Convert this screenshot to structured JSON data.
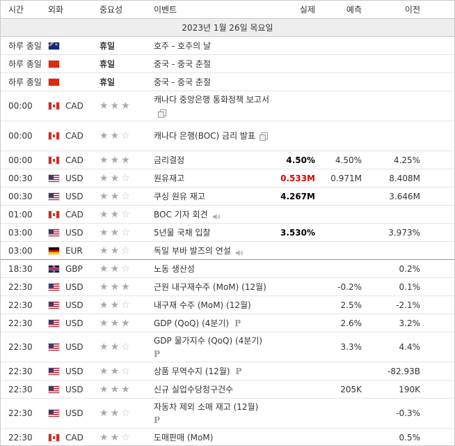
{
  "header": {
    "time": "시간",
    "currency": "외화",
    "importance": "중요성",
    "event": "이벤트",
    "actual": "실제",
    "forecast": "예측",
    "previous": "이전"
  },
  "date_label": "2023년 1월 26일 목요일",
  "rows": [
    {
      "time": "하루 종일",
      "flag": "au",
      "currency": "",
      "importance": "휴일",
      "holiday": true,
      "event": "호주 - 호주의 날",
      "actual": "",
      "forecast": "",
      "previous": "",
      "h": 26
    },
    {
      "time": "하루 종일",
      "flag": "cn",
      "currency": "",
      "importance": "휴일",
      "holiday": true,
      "event": "중국 - 중국 춘절",
      "actual": "",
      "forecast": "",
      "previous": "",
      "h": 26
    },
    {
      "time": "하루 종일",
      "flag": "cn",
      "currency": "",
      "importance": "휴일",
      "holiday": true,
      "event": "중국 - 중국 춘절",
      "actual": "",
      "forecast": "",
      "previous": "",
      "h": 26
    },
    {
      "time": "00:00",
      "flag": "ca",
      "currency": "CAD",
      "stars": 3,
      "event": "캐나다 중앙은행 통화정책 보고서",
      "icon": "doc-icon",
      "actual": "",
      "forecast": "",
      "previous": "",
      "h": 43
    },
    {
      "time": "00:00",
      "flag": "ca",
      "currency": "CAD",
      "stars": 2,
      "event": "캐나다 은행(BOC) 금리 발표",
      "icon": "doc-icon",
      "actual": "",
      "forecast": "",
      "previous": "",
      "h": 43
    },
    {
      "time": "00:00",
      "flag": "ca",
      "currency": "CAD",
      "stars": 3,
      "event": "금리결정",
      "actual": "4.50%",
      "actual_color": "#000000",
      "forecast": "4.50%",
      "previous": "4.25%",
      "h": 26
    },
    {
      "time": "00:30",
      "flag": "us",
      "currency": "USD",
      "stars": 2,
      "event": "원유재고",
      "actual": "0.533M",
      "actual_color": "#e00000",
      "forecast": "0.971M",
      "previous": "8.408M",
      "h": 26
    },
    {
      "time": "00:30",
      "flag": "us",
      "currency": "USD",
      "stars": 2,
      "event": "쿠싱 원유 재고",
      "actual": "4.267M",
      "actual_color": "#000000",
      "forecast": "",
      "previous": "3.646M",
      "h": 26
    },
    {
      "time": "01:00",
      "flag": "ca",
      "currency": "CAD",
      "stars": 2,
      "event": "BOC 기자 회견",
      "icon": "speaker-icon",
      "actual": "",
      "forecast": "",
      "previous": "",
      "h": 26
    },
    {
      "time": "03:00",
      "flag": "us",
      "currency": "USD",
      "stars": 2,
      "event": "5년물 국채 입찰",
      "actual": "3.530%",
      "actual_color": "#000000",
      "forecast": "",
      "previous": "3.973%",
      "h": 26
    },
    {
      "time": "03:00",
      "flag": "de",
      "currency": "EUR",
      "stars": 2,
      "event": "독일 부바 발즈의 연설",
      "icon": "speaker-icon",
      "actual": "",
      "forecast": "",
      "previous": "",
      "h": 26,
      "sep": true
    },
    {
      "time": "18:30",
      "flag": "gb",
      "currency": "GBP",
      "stars": 2,
      "event": "노동 생산성",
      "actual": "",
      "forecast": "",
      "previous": "0.2%",
      "h": 26
    },
    {
      "time": "22:30",
      "flag": "us",
      "currency": "USD",
      "stars": 3,
      "event": "근원 내구재수주 (MoM) (12월)",
      "actual": "",
      "forecast": "-0.2%",
      "previous": "0.1%",
      "h": 26
    },
    {
      "time": "22:30",
      "flag": "us",
      "currency": "USD",
      "stars": 2,
      "event": "내구재 수주 (MoM) (12월)",
      "actual": "",
      "forecast": "2.5%",
      "previous": "-2.1%",
      "h": 26
    },
    {
      "time": "22:30",
      "flag": "us",
      "currency": "USD",
      "stars": 3,
      "event": "GDP (QoQ) (4분기)",
      "icon": "p-icon",
      "actual": "",
      "forecast": "2.6%",
      "previous": "3.2%",
      "h": 26
    },
    {
      "time": "22:30",
      "flag": "us",
      "currency": "USD",
      "stars": 2,
      "event": "GDP 물가지수 (QoQ) (4분기)",
      "icon": "p-icon",
      "icon_newline": true,
      "actual": "",
      "forecast": "3.3%",
      "previous": "4.4%",
      "h": 43
    },
    {
      "time": "22:30",
      "flag": "us",
      "currency": "USD",
      "stars": 2,
      "event": "상품 무역수지 (12월)",
      "icon": "p-icon",
      "actual": "",
      "forecast": "",
      "previous": "-82.93B",
      "h": 26
    },
    {
      "time": "22:30",
      "flag": "us",
      "currency": "USD",
      "stars": 3,
      "event": "신규 실업수당청구건수",
      "actual": "",
      "forecast": "205K",
      "previous": "190K",
      "h": 26
    },
    {
      "time": "22:30",
      "flag": "us",
      "currency": "USD",
      "stars": 2,
      "event": "자동차 제외 소매 재고 (12월)",
      "icon": "p-icon",
      "icon_newline": true,
      "actual": "",
      "forecast": "",
      "previous": "-0.3%",
      "h": 43
    },
    {
      "time": "22:30",
      "flag": "ca",
      "currency": "CAD",
      "stars": 2,
      "event": "도매판매 (MoM)",
      "actual": "",
      "forecast": "",
      "previous": "0.5%",
      "h": 26
    }
  ],
  "icons": {
    "star": "★",
    "p": "P"
  }
}
